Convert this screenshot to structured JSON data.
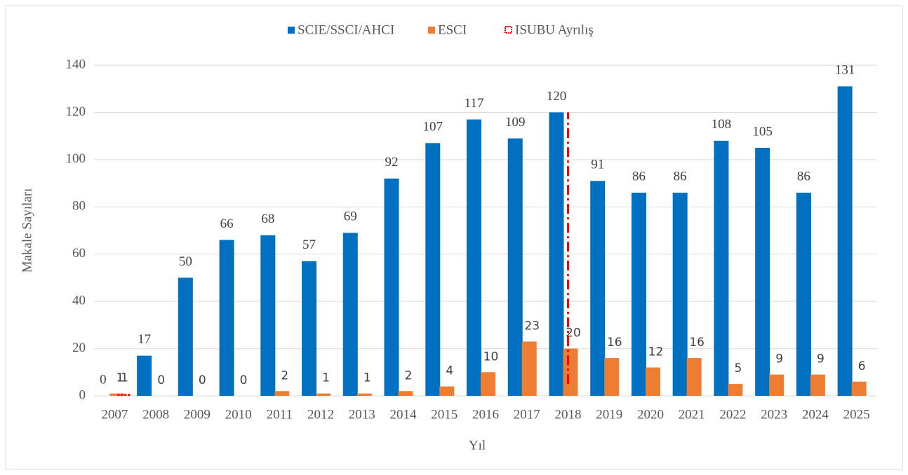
{
  "chart_data": {
    "type": "bar",
    "x_label": "Yıl",
    "y_label": "Makale Sayıları",
    "categories": [
      "2007",
      "2008",
      "2009",
      "2010",
      "2011",
      "2012",
      "2013",
      "2014",
      "2015",
      "2016",
      "2017",
      "2018",
      "2019",
      "2020",
      "2021",
      "2022",
      "2023",
      "2024",
      "2025"
    ],
    "series": [
      {
        "name": "SCIE/SSCI/AHCI",
        "color": "#0070c0",
        "values": [
          0,
          17,
          50,
          66,
          68,
          57,
          69,
          92,
          107,
          117,
          109,
          120,
          91,
          86,
          86,
          108,
          105,
          86,
          131
        ]
      },
      {
        "name": "ESCI",
        "color": "#ed7d31",
        "values": [
          1,
          0,
          0,
          0,
          2,
          1,
          1,
          2,
          4,
          10,
          23,
          20,
          16,
          12,
          16,
          5,
          9,
          9,
          6
        ]
      }
    ],
    "marker": {
      "name": "ISUBU Ayrılış",
      "color": "#ff0000",
      "point_category": "2007",
      "point_value": 1,
      "line_category": "2018",
      "line_range": [
        5,
        120
      ]
    },
    "ylim": [
      0,
      140
    ],
    "yticks": [
      0,
      20,
      40,
      60,
      80,
      100,
      120,
      140
    ],
    "grid": true,
    "legend": "top"
  }
}
